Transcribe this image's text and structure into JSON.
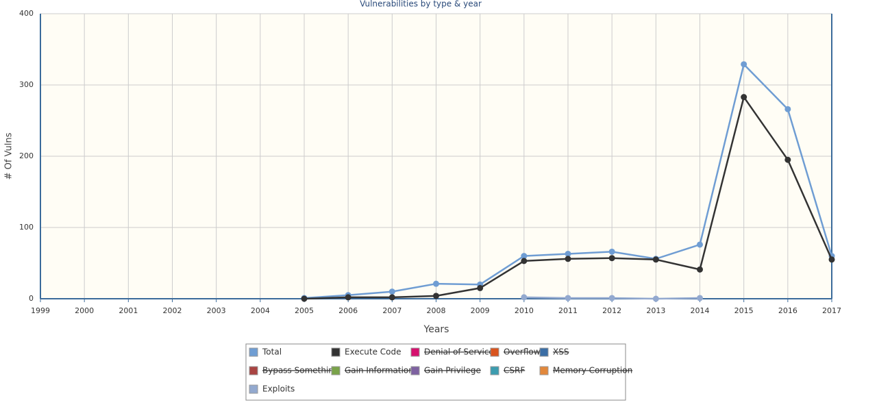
{
  "chart_data": {
    "type": "line",
    "title": "Vulnerabilities by type & year",
    "x_label": "Years",
    "y_label": "# Of Vulns",
    "categories": [
      "1999",
      "2000",
      "2001",
      "2002",
      "2003",
      "2004",
      "2005",
      "2006",
      "2007",
      "2008",
      "2009",
      "2010",
      "2011",
      "2012",
      "2013",
      "2014",
      "2015",
      "2016",
      "2017"
    ],
    "ylim": [
      0,
      400
    ],
    "yticks": [
      0,
      100,
      200,
      300,
      400
    ],
    "grid": true,
    "series": [
      {
        "name": "Total",
        "color": "#6f9dd3",
        "values": [
          null,
          null,
          null,
          null,
          null,
          null,
          1,
          5,
          10,
          21,
          20,
          60,
          63,
          66,
          56,
          76,
          329,
          266,
          60
        ]
      },
      {
        "name": "Execute Code",
        "color": "#333333",
        "values": [
          null,
          null,
          null,
          null,
          null,
          null,
          0,
          2,
          2,
          4,
          15,
          53,
          56,
          57,
          55,
          41,
          283,
          195,
          55
        ]
      },
      {
        "name": "Denial of Service",
        "color": "#d6106e",
        "hidden": true,
        "values": [
          null,
          null,
          null,
          null,
          null,
          null,
          null,
          null,
          null,
          null,
          null,
          null,
          null,
          null,
          null,
          null,
          null,
          null,
          null
        ]
      },
      {
        "name": "Overflow",
        "color": "#d9541e",
        "hidden": true,
        "values": [
          null,
          null,
          null,
          null,
          null,
          null,
          null,
          null,
          null,
          null,
          null,
          null,
          null,
          null,
          null,
          null,
          null,
          null,
          null
        ]
      },
      {
        "name": "XSS",
        "color": "#3b6ea5",
        "hidden": true,
        "values": [
          null,
          null,
          null,
          null,
          null,
          null,
          null,
          null,
          null,
          null,
          null,
          null,
          null,
          null,
          null,
          null,
          null,
          null,
          null
        ]
      },
      {
        "name": "Bypass Something",
        "color": "#a94442",
        "hidden": true,
        "values": [
          null,
          null,
          null,
          null,
          null,
          null,
          null,
          null,
          null,
          null,
          null,
          null,
          null,
          null,
          null,
          null,
          null,
          null,
          null
        ]
      },
      {
        "name": "Gain Information",
        "color": "#7aa34a",
        "hidden": true,
        "values": [
          null,
          null,
          null,
          null,
          null,
          null,
          null,
          null,
          null,
          null,
          null,
          null,
          null,
          null,
          null,
          null,
          null,
          null,
          null
        ]
      },
      {
        "name": "Gain Privilege",
        "color": "#7e62a1",
        "hidden": true,
        "values": [
          null,
          null,
          null,
          null,
          null,
          null,
          null,
          null,
          null,
          null,
          null,
          null,
          null,
          null,
          null,
          null,
          null,
          null,
          null
        ]
      },
      {
        "name": "CSRF",
        "color": "#3c9caf",
        "hidden": true,
        "values": [
          null,
          null,
          null,
          null,
          null,
          null,
          null,
          null,
          null,
          null,
          null,
          null,
          null,
          null,
          null,
          null,
          null,
          null,
          null
        ]
      },
      {
        "name": "Memory Corruption",
        "color": "#e2883c",
        "hidden": true,
        "values": [
          null,
          null,
          null,
          null,
          null,
          null,
          null,
          null,
          null,
          null,
          null,
          null,
          null,
          null,
          null,
          null,
          null,
          null,
          null
        ]
      },
      {
        "name": "Exploits",
        "color": "#93a9cf",
        "values": [
          null,
          null,
          null,
          null,
          null,
          null,
          null,
          null,
          null,
          null,
          null,
          2,
          1,
          1,
          0,
          1,
          null,
          null,
          null
        ]
      }
    ]
  }
}
